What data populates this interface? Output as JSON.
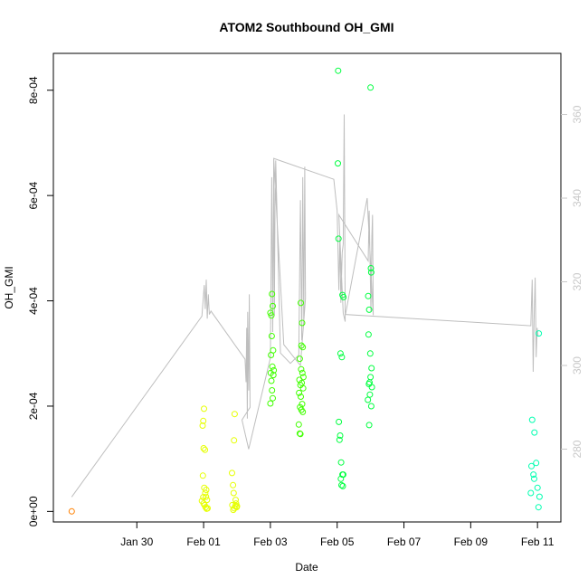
{
  "chart_data": {
    "type": "scatter",
    "title": "ATOM2 Southbound OH_GMI",
    "xlabel": "Date",
    "ylabel": "OH_GMI",
    "y2label": "",
    "xlim": [
      -2.5,
      12.7
    ],
    "ylim": [
      -2e-05,
      0.00087
    ],
    "y2lim": [
      262.6,
      374.6
    ],
    "x_ticks": [
      {
        "value": 0,
        "label": "Jan 30"
      },
      {
        "value": 2,
        "label": "Feb 01"
      },
      {
        "value": 4,
        "label": "Feb 03"
      },
      {
        "value": 6,
        "label": "Feb 05"
      },
      {
        "value": 8,
        "label": "Feb 07"
      },
      {
        "value": 10,
        "label": "Feb 09"
      },
      {
        "value": 12,
        "label": "Feb 11"
      }
    ],
    "y_ticks": [
      {
        "value": 0,
        "label": "0e+00"
      },
      {
        "value": 0.0002,
        "label": "2e-04"
      },
      {
        "value": 0.0004,
        "label": "4e-04"
      },
      {
        "value": 0.0006,
        "label": "6e-04"
      },
      {
        "value": 0.0008,
        "label": "8e-04"
      }
    ],
    "y2_ticks": [
      {
        "value": 280,
        "label": "280"
      },
      {
        "value": 300,
        "label": "300"
      },
      {
        "value": 320,
        "label": "320"
      },
      {
        "value": 340,
        "label": "340"
      },
      {
        "value": 360,
        "label": "360"
      }
    ],
    "grid": false,
    "legend": "none",
    "colors": {
      "line": "#bebebe",
      "point_start": "#ff8000",
      "point_yellow": "#e6ff00",
      "point_green": "#40ff00",
      "point_mid": "#00ff40",
      "point_end": "#00ffb0"
    },
    "line_series": {
      "axis": "right",
      "points": [
        [
          -1.95,
          268.6
        ],
        [
          1.95,
          311.8
        ],
        [
          2.02,
          319.2
        ],
        [
          2.05,
          313.5
        ],
        [
          2.08,
          320.5
        ],
        [
          2.11,
          311.2
        ],
        [
          2.14,
          317.0
        ],
        [
          2.17,
          312.2
        ],
        [
          2.22,
          313.0
        ],
        [
          3.24,
          301.5
        ],
        [
          3.27,
          296.0
        ],
        [
          3.29,
          309.0
        ],
        [
          3.31,
          287.3
        ],
        [
          3.32,
          312.8
        ],
        [
          3.35,
          294.0
        ],
        [
          3.37,
          317.0
        ],
        [
          3.39,
          290.0
        ],
        [
          3.15,
          287.0
        ],
        [
          3.35,
          280.0
        ],
        [
          4.0,
          301.8
        ],
        [
          4.04,
          345.0
        ],
        [
          4.07,
          308.0
        ],
        [
          4.1,
          349.3
        ],
        [
          4.12,
          312.0
        ],
        [
          4.14,
          341.0
        ],
        [
          4.16,
          349.0
        ],
        [
          4.3,
          303.0
        ],
        [
          4.6,
          300.5
        ],
        [
          4.85,
          302.5
        ],
        [
          4.9,
          339.5
        ],
        [
          4.94,
          306.0
        ],
        [
          4.97,
          345.0
        ],
        [
          5.0,
          310.0
        ],
        [
          5.03,
          347.5
        ],
        [
          5.05,
          316.0
        ],
        [
          4.9,
          300.0
        ],
        [
          4.4,
          305.0
        ],
        [
          4.1,
          349.5
        ],
        [
          5.9,
          344.5
        ],
        [
          6.0,
          337.0
        ],
        [
          6.05,
          318.0
        ],
        [
          6.08,
          331.0
        ],
        [
          6.11,
          315.0
        ],
        [
          6.15,
          327.0
        ],
        [
          6.18,
          329.0
        ],
        [
          6.21,
          360.0
        ],
        [
          6.24,
          310.5
        ],
        [
          6.18,
          312.5
        ],
        [
          6.05,
          336.0
        ],
        [
          6.93,
          325.0
        ],
        [
          6.96,
          337.0
        ],
        [
          6.99,
          322.0
        ],
        [
          7.01,
          313.0
        ],
        [
          7.04,
          331.0
        ],
        [
          7.06,
          336.0
        ],
        [
          7.08,
          312.0
        ],
        [
          6.9,
          340.0
        ],
        [
          6.25,
          312.2
        ],
        [
          11.8,
          309.5
        ],
        [
          11.84,
          320.5
        ],
        [
          11.87,
          298.5
        ],
        [
          11.9,
          312.0
        ],
        [
          11.93,
          321.0
        ],
        [
          11.96,
          302.0
        ],
        [
          11.99,
          309.0
        ],
        [
          12.02,
          307.0
        ]
      ]
    },
    "scatter_series": {
      "axis": "left",
      "points": [
        [
          -1.95,
          1e-07,
          "#ff8000"
        ],
        [
          1.97,
          0.000163
        ],
        [
          1.99,
          0.000172
        ],
        [
          2.01,
          0.000195
        ],
        [
          2.0,
          0.00012
        ],
        [
          2.04,
          0.000117
        ],
        [
          1.98,
          6.8e-05
        ],
        [
          2.02,
          4.5e-05
        ],
        [
          2.05,
          3.5e-05
        ],
        [
          2.07,
          2.8e-05
        ],
        [
          2.1,
          2.2e-05
        ],
        [
          1.95,
          2e-05
        ],
        [
          2.0,
          1.5e-05
        ],
        [
          2.03,
          1.2e-05
        ],
        [
          2.06,
          8e-06
        ],
        [
          2.09,
          5e-06
        ],
        [
          2.12,
          6e-06
        ],
        [
          2.08,
          4.1e-05
        ],
        [
          1.99,
          2.7e-05
        ],
        [
          2.85,
          7.3e-05
        ],
        [
          2.88,
          5e-05
        ],
        [
          2.9,
          3.5e-05
        ],
        [
          2.93,
          0.000185
        ],
        [
          2.91,
          0.000135
        ],
        [
          2.95,
          1e-05
        ],
        [
          2.97,
          1.5e-05
        ],
        [
          2.99,
          8e-06
        ],
        [
          2.86,
          1.2e-05
        ],
        [
          2.89,
          3e-06
        ],
        [
          2.92,
          6e-06
        ],
        [
          2.96,
          2.2e-05
        ],
        [
          3.0,
          1e-05
        ],
        [
          4.05,
          0.000413
        ],
        [
          4.07,
          0.00039
        ],
        [
          4.03,
          0.000372
        ],
        [
          4.0,
          0.000377
        ],
        [
          4.04,
          0.000333
        ],
        [
          4.08,
          0.000306
        ],
        [
          4.02,
          0.000297
        ],
        [
          4.06,
          0.000275
        ],
        [
          4.1,
          0.000268
        ],
        [
          4.01,
          0.000263
        ],
        [
          4.09,
          0.000259
        ],
        [
          4.03,
          0.000248
        ],
        [
          4.05,
          0.00023
        ],
        [
          4.07,
          0.000215
        ],
        [
          4.0,
          0.000205
        ],
        [
          4.91,
          0.000396
        ],
        [
          4.95,
          0.000358
        ],
        [
          4.93,
          0.000315
        ],
        [
          4.97,
          0.000312
        ],
        [
          4.88,
          0.00029
        ],
        [
          4.92,
          0.00027
        ],
        [
          4.96,
          0.000263
        ],
        [
          4.99,
          0.000255
        ],
        [
          4.87,
          0.00025
        ],
        [
          4.94,
          0.000244
        ],
        [
          4.9,
          0.00024
        ],
        [
          4.98,
          0.000234
        ],
        [
          4.86,
          0.000225
        ],
        [
          4.91,
          0.000218
        ],
        [
          4.95,
          0.000204
        ],
        [
          4.89,
          0.000198
        ],
        [
          4.93,
          0.000193
        ],
        [
          4.97,
          0.000189
        ],
        [
          4.85,
          0.000165
        ],
        [
          4.88,
          0.000148
        ],
        [
          4.9,
          0.000147
        ],
        [
          6.03,
          0.000837
        ],
        [
          6.02,
          0.000661
        ],
        [
          6.04,
          0.000518
        ],
        [
          6.16,
          0.000411
        ],
        [
          6.19,
          0.000407
        ],
        [
          6.1,
          0.0003
        ],
        [
          6.14,
          0.000293
        ],
        [
          6.05,
          0.00017
        ],
        [
          6.09,
          0.000144
        ],
        [
          6.07,
          0.000136
        ],
        [
          6.12,
          9.3e-05
        ],
        [
          6.16,
          7e-05
        ],
        [
          6.18,
          7e-05
        ],
        [
          6.11,
          6.2e-05
        ],
        [
          6.13,
          5e-05
        ],
        [
          6.17,
          4.8e-05
        ],
        [
          7.0,
          0.000805
        ],
        [
          7.01,
          0.000462
        ],
        [
          7.02,
          0.000454
        ],
        [
          6.93,
          0.000409
        ],
        [
          6.96,
          0.000383
        ],
        [
          6.94,
          0.000336
        ],
        [
          6.99,
          0.0003
        ],
        [
          7.03,
          0.000272
        ],
        [
          7.0,
          0.000255
        ],
        [
          6.97,
          0.000245
        ],
        [
          6.95,
          0.000242
        ],
        [
          7.04,
          0.000236
        ],
        [
          6.98,
          0.000222
        ],
        [
          6.92,
          0.000212
        ],
        [
          7.02,
          0.0002
        ],
        [
          6.96,
          0.000164
        ],
        [
          12.04,
          0.000338
        ],
        [
          11.84,
          0.000174
        ],
        [
          11.91,
          0.00015
        ],
        [
          11.96,
          9.2e-05
        ],
        [
          11.82,
          8.6e-05
        ],
        [
          11.88,
          7e-05
        ],
        [
          11.9,
          6.2e-05
        ],
        [
          12.0,
          4.5e-05
        ],
        [
          11.8,
          3.5e-05
        ],
        [
          12.06,
          2.8e-05
        ],
        [
          12.03,
          8e-06
        ]
      ]
    }
  }
}
